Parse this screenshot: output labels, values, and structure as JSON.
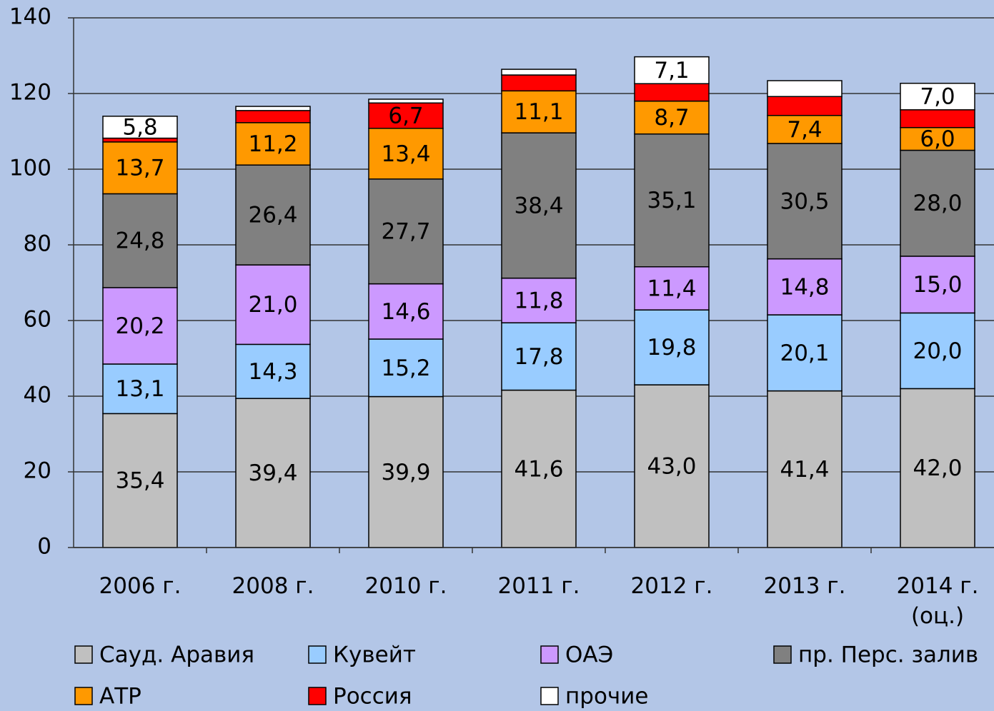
{
  "chart_data": {
    "type": "stacked_bar",
    "categories": [
      "2006 г.",
      "2008 г.",
      "2010 г.",
      "2011 г.",
      "2012 г.",
      "2013 г.",
      "2014 г.\n(оц.)"
    ],
    "series": [
      {
        "name": "Сауд. Аравия",
        "color": "#c0c0c0",
        "values": [
          35.4,
          39.4,
          39.9,
          41.6,
          43.0,
          41.4,
          42.0
        ],
        "value_labels": [
          "35,4",
          "39,4",
          "39,9",
          "41,6",
          "43,0",
          "41,4",
          "42,0"
        ]
      },
      {
        "name": "Кувейт",
        "color": "#99ccff",
        "values": [
          13.1,
          14.3,
          15.2,
          17.8,
          19.8,
          20.1,
          20.0
        ],
        "value_labels": [
          "13,1",
          "14,3",
          "15,2",
          "17,8",
          "19,8",
          "20,1",
          "20,0"
        ]
      },
      {
        "name": "ОАЭ",
        "color": "#cc99ff",
        "values": [
          20.2,
          21.0,
          14.6,
          11.8,
          11.4,
          14.8,
          15.0
        ],
        "value_labels": [
          "20,2",
          "21,0",
          "14,6",
          "11,8",
          "11,4",
          "14,8",
          "15,0"
        ]
      },
      {
        "name": "пр. Перс. залив",
        "color": "#808080",
        "values": [
          24.8,
          26.4,
          27.7,
          38.4,
          35.1,
          30.5,
          28.0
        ],
        "value_labels": [
          "24,8",
          "26,4",
          "27,7",
          "38,4",
          "35,1",
          "30,5",
          "28,0"
        ]
      },
      {
        "name": "АТР",
        "color": "#ff9900",
        "values": [
          13.7,
          11.2,
          13.4,
          11.1,
          8.7,
          7.4,
          6.0
        ],
        "value_labels": [
          "13,7",
          "11,2",
          "13,4",
          "11,1",
          "8,7",
          "7,4",
          "6,0"
        ]
      },
      {
        "name": "Россия",
        "color": "#ff0000",
        "values": [
          1.0,
          3.2,
          6.7,
          4.2,
          4.6,
          5.0,
          4.7
        ],
        "value_labels": [
          null,
          null,
          "6,7",
          null,
          null,
          null,
          null
        ]
      },
      {
        "name": "прочие",
        "color": "#ffffff",
        "values": [
          5.8,
          1.1,
          1.0,
          1.5,
          7.1,
          4.2,
          7.0
        ],
        "value_labels": [
          "5,8",
          null,
          null,
          null,
          "7,1",
          null,
          "7,0"
        ]
      }
    ],
    "ylim": [
      0,
      140
    ],
    "yticks": [
      0,
      20,
      40,
      60,
      80,
      100,
      120,
      140
    ],
    "grid": true
  }
}
